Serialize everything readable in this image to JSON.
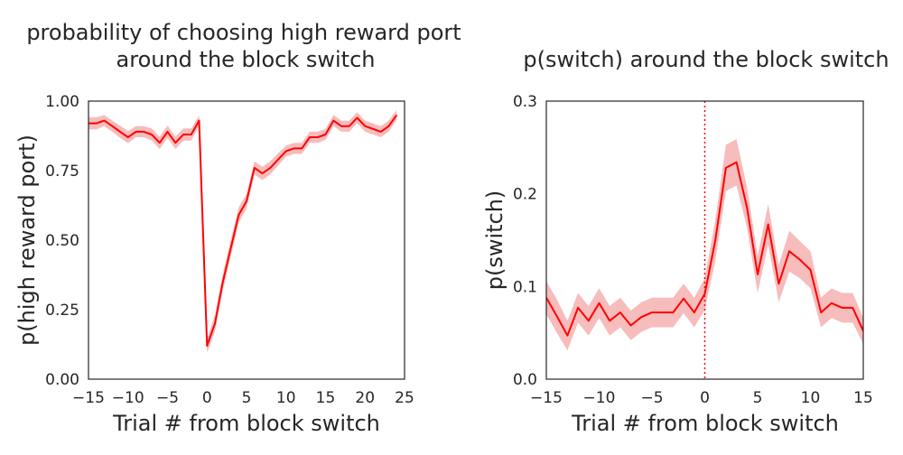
{
  "chart_data": [
    {
      "type": "line",
      "title_line1": "probability of choosing high reward port",
      "title_line2": "around the block switch",
      "xlabel": "Trial # from block switch",
      "ylabel": "p(high reward port)",
      "xlim": [
        -15,
        25
      ],
      "ylim": [
        0,
        1
      ],
      "xticks": [
        -15,
        -10,
        -5,
        0,
        5,
        10,
        15,
        20,
        25
      ],
      "xtick_labels": [
        "−15",
        "−10",
        "−5",
        "0",
        "5",
        "10",
        "15",
        "20",
        "25"
      ],
      "yticks": [
        0,
        0.25,
        0.5,
        0.75,
        1.0
      ],
      "ytick_labels": [
        "0.00",
        "0.25",
        "0.50",
        "0.75",
        "1.00"
      ],
      "grid": false,
      "line_color": "#ff0000",
      "band_color": "#f4a6a6",
      "series": [
        {
          "x": [
            -15,
            -14,
            -13,
            -12,
            -11,
            -10,
            -9,
            -8,
            -7,
            -6,
            -5,
            -4,
            -3,
            -2,
            -1,
            0,
            1,
            2,
            3,
            4,
            5,
            6,
            7,
            8,
            9,
            10,
            11,
            12,
            13,
            14,
            15,
            16,
            17,
            18,
            19,
            20,
            21,
            22,
            23,
            24
          ],
          "y": [
            0.92,
            0.92,
            0.93,
            0.91,
            0.89,
            0.87,
            0.89,
            0.89,
            0.88,
            0.85,
            0.89,
            0.85,
            0.88,
            0.88,
            0.93,
            0.12,
            0.2,
            0.35,
            0.47,
            0.59,
            0.64,
            0.76,
            0.74,
            0.76,
            0.79,
            0.82,
            0.83,
            0.83,
            0.87,
            0.87,
            0.88,
            0.93,
            0.91,
            0.91,
            0.94,
            0.91,
            0.9,
            0.89,
            0.91,
            0.95
          ],
          "ci": [
            0.022,
            0.022,
            0.02,
            0.02,
            0.022,
            0.022,
            0.02,
            0.02,
            0.022,
            0.022,
            0.022,
            0.022,
            0.022,
            0.022,
            0.018,
            0.025,
            0.03,
            0.03,
            0.03,
            0.028,
            0.026,
            0.024,
            0.024,
            0.024,
            0.022,
            0.02,
            0.02,
            0.02,
            0.02,
            0.02,
            0.02,
            0.02,
            0.02,
            0.02,
            0.02,
            0.02,
            0.02,
            0.02,
            0.02,
            0.018
          ]
        }
      ]
    },
    {
      "type": "line",
      "title_line1": "p(switch) around the block switch",
      "xlabel": "Trial # from block switch",
      "ylabel": "p(switch)",
      "xlim": [
        -15,
        15
      ],
      "ylim": [
        0,
        0.3
      ],
      "xticks": [
        -15,
        -10,
        -5,
        0,
        5,
        10,
        15
      ],
      "xtick_labels": [
        "−15",
        "−10",
        "−5",
        "0",
        "5",
        "10",
        "15"
      ],
      "yticks": [
        0,
        0.1,
        0.2,
        0.3
      ],
      "ytick_labels": [
        "0.0",
        "0.1",
        "0.2",
        "0.3"
      ],
      "grid": false,
      "vline_x": 0,
      "line_color": "#ff0000",
      "band_color": "#f4a6a6",
      "series": [
        {
          "x": [
            -15,
            -14,
            -13,
            -12,
            -11,
            -10,
            -9,
            -8,
            -7,
            -6,
            -5,
            -4,
            -3,
            -2,
            -1,
            0,
            1,
            2,
            3,
            4,
            5,
            6,
            7,
            8,
            9,
            10,
            11,
            12,
            13,
            14,
            15
          ],
          "y": [
            0.088,
            0.068,
            0.047,
            0.077,
            0.063,
            0.082,
            0.063,
            0.072,
            0.058,
            0.067,
            0.072,
            0.072,
            0.072,
            0.087,
            0.072,
            0.092,
            0.15,
            0.228,
            0.234,
            0.185,
            0.113,
            0.167,
            0.103,
            0.138,
            0.129,
            0.118,
            0.072,
            0.082,
            0.077,
            0.077,
            0.052
          ],
          "ci": [
            0.018,
            0.018,
            0.016,
            0.016,
            0.016,
            0.016,
            0.016,
            0.016,
            0.016,
            0.016,
            0.016,
            0.016,
            0.016,
            0.016,
            0.016,
            0.017,
            0.022,
            0.025,
            0.025,
            0.022,
            0.02,
            0.022,
            0.02,
            0.022,
            0.02,
            0.02,
            0.016,
            0.016,
            0.016,
            0.016,
            0.014
          ]
        }
      ]
    }
  ]
}
